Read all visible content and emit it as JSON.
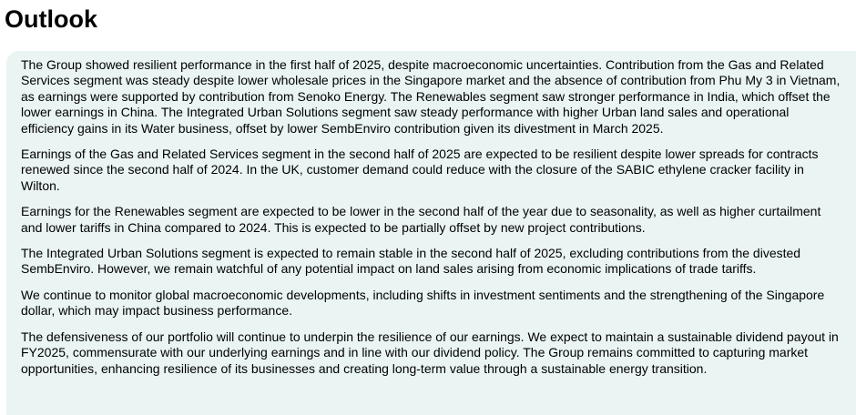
{
  "heading": "Outlook",
  "paragraphs": [
    "The Group showed resilient performance in the first half of 2025, despite macroeconomic uncertainties. Contribution from the Gas and Related Services segment was steady despite lower wholesale prices in the Singapore market and the absence of contribution from Phu My 3 in Vietnam, as earnings were supported by contribution from Senoko Energy. The Renewables segment saw stronger performance in India, which offset the lower earnings in China. The Integrated Urban Solutions segment saw steady performance with higher Urban land sales and operational efficiency gains in its Water business, offset by lower SembEnviro contribution given its divestment in March 2025.",
    "Earnings of the Gas and Related Services segment in the second half of 2025 are expected to be resilient despite lower spreads for contracts renewed since the second half of 2024. In the UK, customer demand could reduce with the closure of the SABIC ethylene cracker facility in Wilton.",
    "Earnings for the Renewables segment are expected to be lower in the second half of the year due to seasonality, as well as higher curtailment and lower tariffs in China compared to 2024. This is expected to be partially offset by new project contributions.",
    "The Integrated Urban Solutions segment is expected to remain stable in the second half of 2025, excluding contributions from the divested SembEnviro. However, we remain watchful of any potential impact on land sales arising from economic implications of trade tariffs.",
    "We continue to monitor global macroeconomic developments, including shifts in investment sentiments and the strengthening of the Singapore dollar, which may impact business performance.",
    "The defensiveness of our portfolio will continue to underpin the resilience of our earnings. We expect to maintain a sustainable dividend payout in FY2025, commensurate with our underlying earnings and in line with our dividend policy. The Group remains committed to capturing market opportunities, enhancing resilience of its businesses and creating long-term value through a sustainable energy transition."
  ],
  "colors": {
    "panel_background": "#e9f4f3",
    "text": "#000000"
  }
}
